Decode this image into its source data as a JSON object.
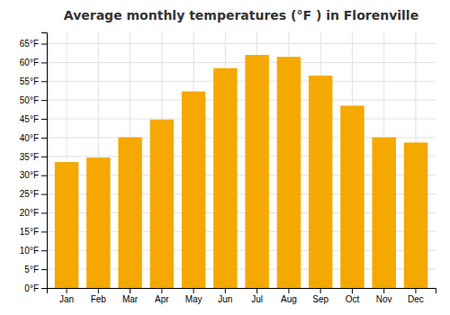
{
  "chart_data": {
    "type": "bar",
    "title": "Average monthly temperatures (°F ) in Florenville",
    "categories": [
      "Jan",
      "Feb",
      "Mar",
      "Apr",
      "May",
      "Jun",
      "Jul",
      "Aug",
      "Sep",
      "Oct",
      "Nov",
      "Dec"
    ],
    "values": [
      33.5,
      34.7,
      40.1,
      44.8,
      52.3,
      58.5,
      62.0,
      61.5,
      56.5,
      48.5,
      40.1,
      38.7
    ],
    "color": "#F5A800",
    "ylim": [
      0,
      68
    ],
    "yticks": [
      {
        "value": 0,
        "label": "0°F"
      },
      {
        "value": 5,
        "label": "5°F"
      },
      {
        "value": 10,
        "label": "10°F"
      },
      {
        "value": 15,
        "label": "15°F"
      },
      {
        "value": 20,
        "label": "20°F"
      },
      {
        "value": 25,
        "label": "25°F"
      },
      {
        "value": 30,
        "label": "30°F"
      },
      {
        "value": 35,
        "label": "35°F"
      },
      {
        "value": 40,
        "label": "40°F"
      },
      {
        "value": 45,
        "label": "45°F"
      },
      {
        "value": 50,
        "label": "50°F"
      },
      {
        "value": 55,
        "label": "55°F"
      },
      {
        "value": 60,
        "label": "60°F"
      },
      {
        "value": 65,
        "label": "65°F"
      }
    ],
    "grid": true
  }
}
